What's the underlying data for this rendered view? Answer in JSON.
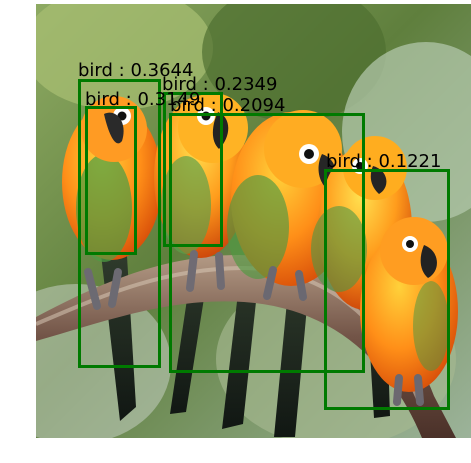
{
  "detections": [
    {
      "label": "bird : 0.3644"
    },
    {
      "label": "bird : 0.3149"
    },
    {
      "label": "bird : 0.2349"
    },
    {
      "label": "bird : 0.2094"
    },
    {
      "label": "bird : 0.1221"
    }
  ],
  "colors": {
    "box": "#007a00",
    "label_text": "#000000",
    "background": "#ffffff"
  }
}
